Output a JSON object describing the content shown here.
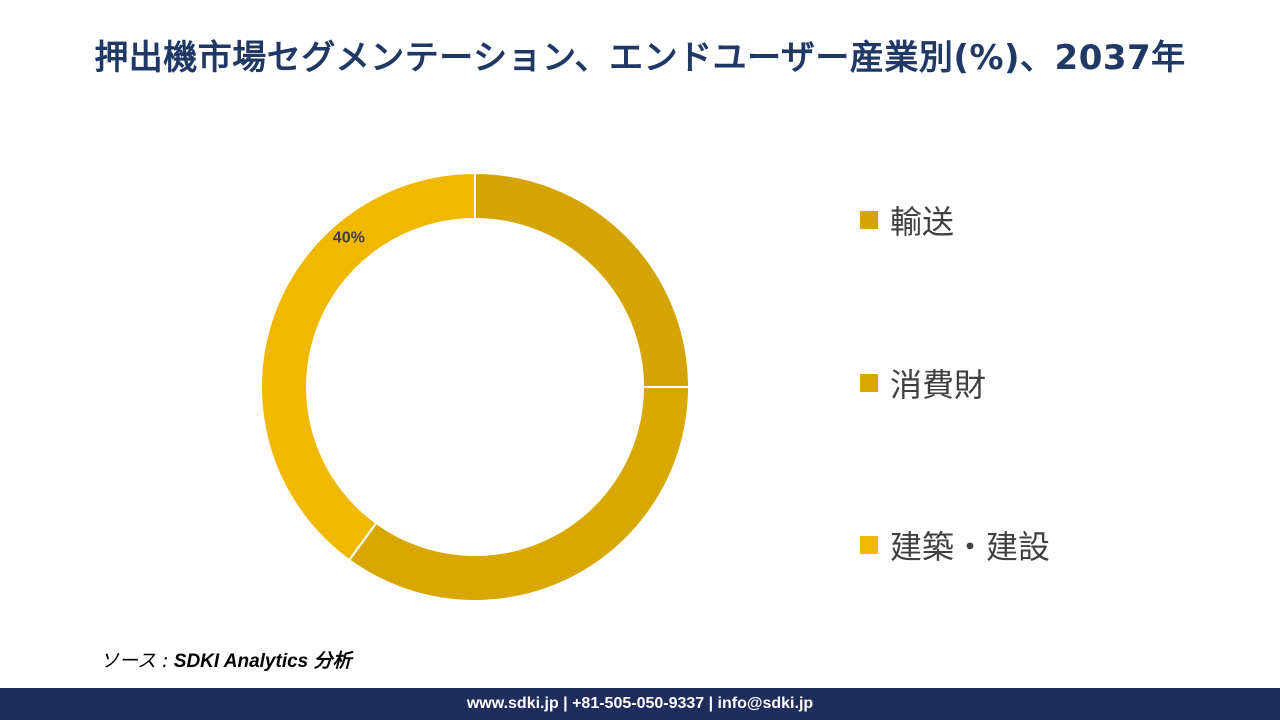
{
  "title": "押出機市場セグメンテーション、エンドユーザー産業別(%)、2037年",
  "chart_data": {
    "type": "pie",
    "donut": true,
    "categories": [
      "輸送",
      "消費財",
      "建築・建設"
    ],
    "values": [
      25,
      35,
      40
    ],
    "data_labels": [
      "",
      "",
      "40%"
    ],
    "colors": [
      "#d4a404",
      "#d9a800",
      "#f1b800"
    ],
    "legend_position": "right"
  },
  "legend": {
    "items": [
      {
        "label": "輸送",
        "color": "#d4a404"
      },
      {
        "label": "消費財",
        "color": "#d9a800"
      },
      {
        "label": "建築・建設",
        "color": "#f1b800"
      }
    ]
  },
  "source": {
    "prefix": "ソース :",
    "text": " SDKI Analytics 分析"
  },
  "footer": {
    "text": "www.sdki.jp | +81-505-050-9337 | info@sdki.jp"
  }
}
